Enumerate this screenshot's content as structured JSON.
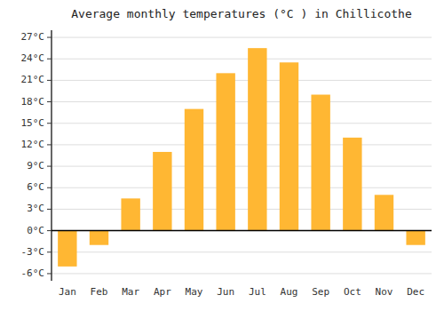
{
  "chart_data": {
    "type": "bar",
    "title": "Average monthly temperatures (°C ) in Chillicothe",
    "categories": [
      "Jan",
      "Feb",
      "Mar",
      "Apr",
      "May",
      "Jun",
      "Jul",
      "Aug",
      "Sep",
      "Oct",
      "Nov",
      "Dec"
    ],
    "values": [
      -5.0,
      -2.0,
      4.5,
      11.0,
      17.0,
      22.0,
      25.5,
      23.5,
      19.0,
      13.0,
      5.0,
      -2.0
    ],
    "color": "#FFB733",
    "ylim": [
      -7,
      28
    ],
    "yticks": [
      {
        "value": -6,
        "label": "-6°C"
      },
      {
        "value": -3,
        "label": "-3°C"
      },
      {
        "value": 0,
        "label": "0°C"
      },
      {
        "value": 3,
        "label": "3°C"
      },
      {
        "value": 6,
        "label": "6°C"
      },
      {
        "value": 9,
        "label": "9°C"
      },
      {
        "value": 12,
        "label": "12°C"
      },
      {
        "value": 15,
        "label": "15°C"
      },
      {
        "value": 18,
        "label": "18°C"
      },
      {
        "value": 21,
        "label": "21°C"
      },
      {
        "value": 24,
        "label": "24°C"
      },
      {
        "value": 27,
        "label": "27°C"
      }
    ],
    "grid": true
  }
}
